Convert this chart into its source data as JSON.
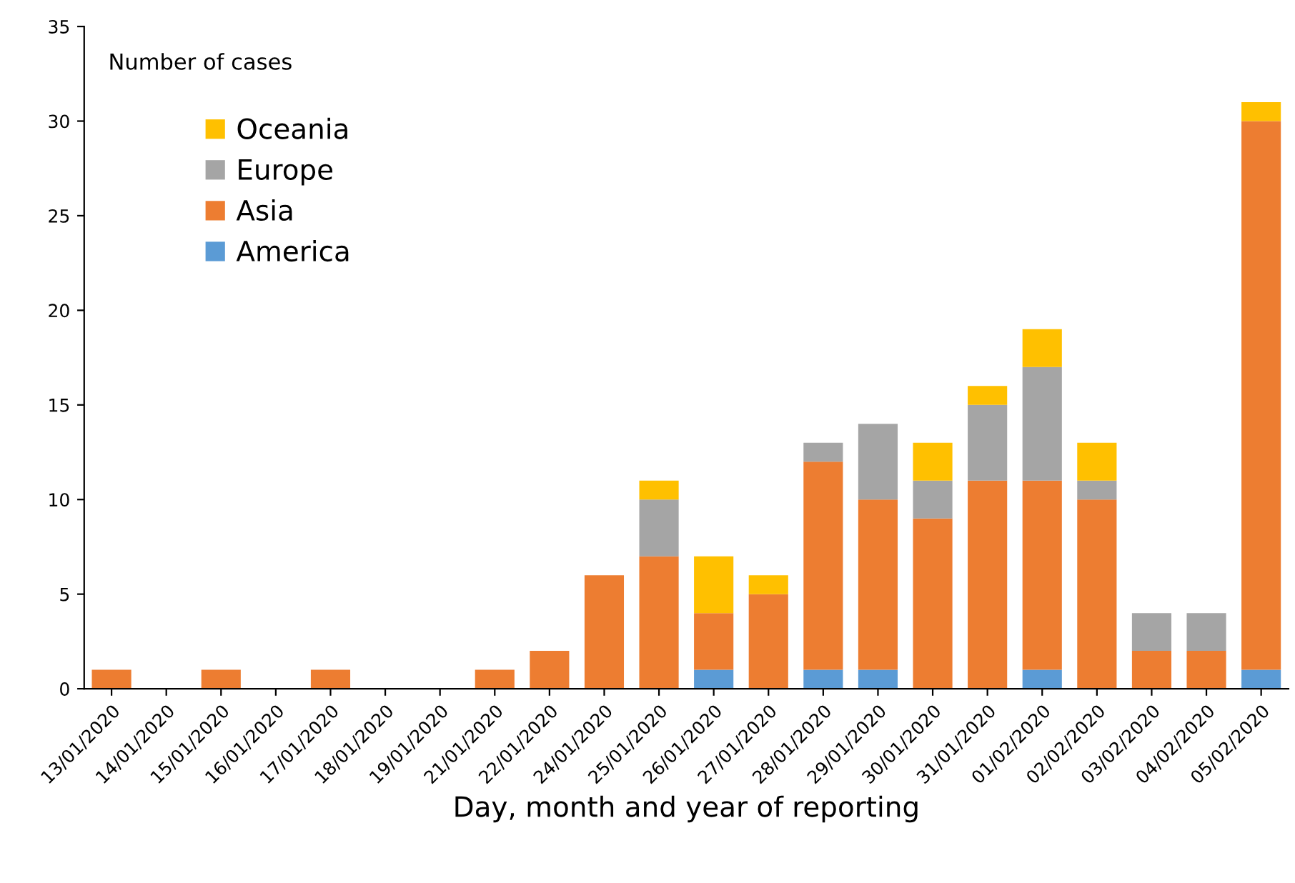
{
  "chart_data": {
    "type": "bar",
    "stacked": true,
    "ylabel": "Number of cases",
    "xlabel": "Day, month and year of reporting",
    "categories": [
      "13/01/2020",
      "14/01/2020",
      "15/01/2020",
      "16/01/2020",
      "17/01/2020",
      "18/01/2020",
      "19/01/2020",
      "21/01/2020",
      "22/01/2020",
      "24/01/2020",
      "25/01/2020",
      "26/01/2020",
      "27/01/2020",
      "28/01/2020",
      "29/01/2020",
      "30/01/2020",
      "31/01/2020",
      "01/02/2020",
      "02/02/2020",
      "03/02/2020",
      "04/02/2020",
      "05/02/2020"
    ],
    "series": [
      {
        "name": "America",
        "color": "#5b9bd5",
        "values": [
          0,
          0,
          0,
          0,
          0,
          0,
          0,
          0,
          0,
          0,
          0,
          1,
          0,
          1,
          1,
          0,
          0,
          1,
          0,
          0,
          0,
          1
        ]
      },
      {
        "name": "Asia",
        "color": "#ed7d31",
        "values": [
          1,
          0,
          1,
          0,
          1,
          0,
          0,
          1,
          2,
          6,
          7,
          3,
          5,
          11,
          9,
          9,
          11,
          10,
          10,
          2,
          2,
          29
        ]
      },
      {
        "name": "Europe",
        "color": "#a5a5a5",
        "values": [
          0,
          0,
          0,
          0,
          0,
          0,
          0,
          0,
          0,
          0,
          3,
          0,
          0,
          1,
          4,
          2,
          4,
          6,
          1,
          2,
          2,
          0
        ]
      },
      {
        "name": "Oceania",
        "color": "#ffc000",
        "values": [
          0,
          0,
          0,
          0,
          0,
          0,
          0,
          0,
          0,
          0,
          1,
          3,
          1,
          0,
          0,
          2,
          1,
          2,
          2,
          0,
          0,
          1
        ]
      }
    ],
    "ylim": [
      0,
      35
    ],
    "yticks": [
      0,
      5,
      10,
      15,
      20,
      25,
      30,
      35
    ],
    "grid": false,
    "legend": "top left"
  }
}
